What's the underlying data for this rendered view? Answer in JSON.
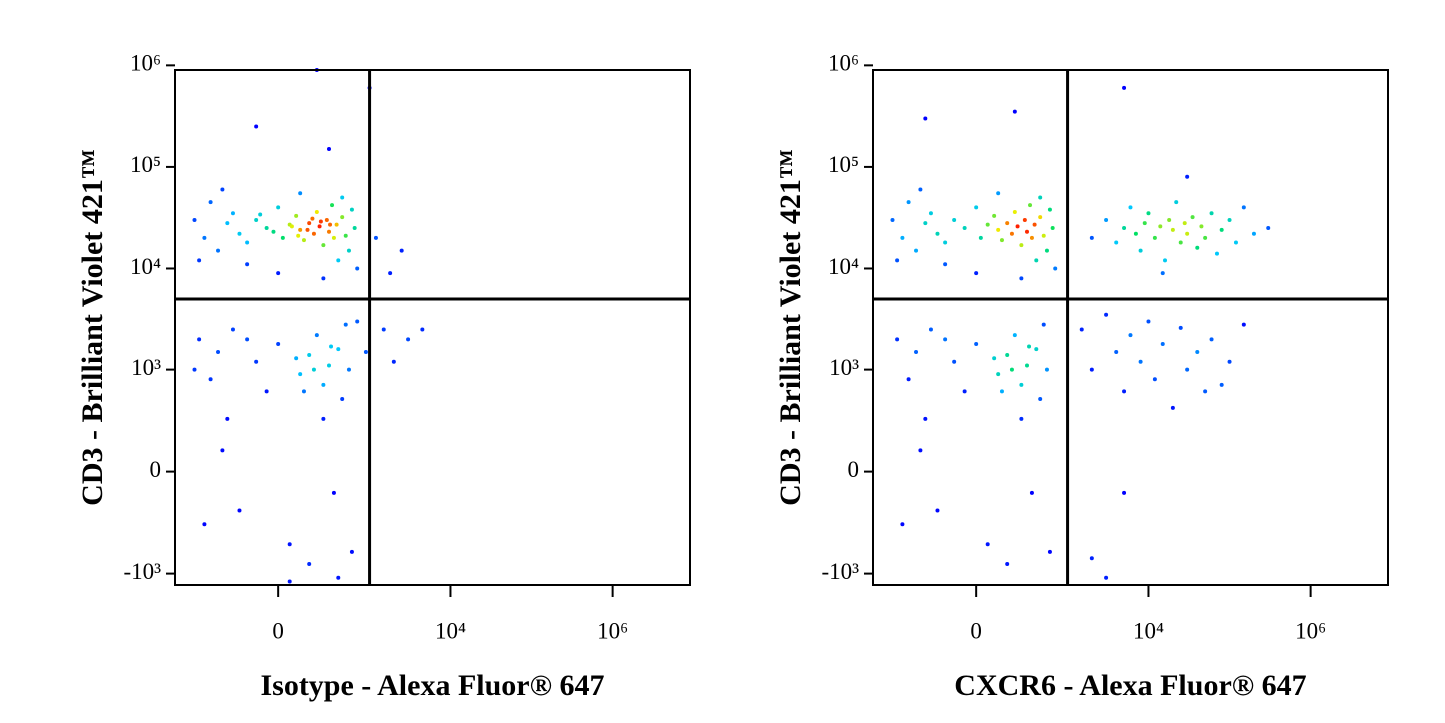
{
  "chart_data": [
    {
      "type": "scatter",
      "xscale": "biexponential",
      "yscale": "biexponential",
      "xlabel": "Isotype - Alexa Fluor® 647",
      "ylabel": "CD3 - Brilliant Violet 421™",
      "xlim": [
        -1400,
        9000000
      ],
      "ylim": [
        -1300,
        900000
      ],
      "xticks": [
        0,
        {
          "value": 10000,
          "label": "10⁴"
        },
        {
          "value": 1000000,
          "label": "10⁶"
        }
      ],
      "yticks": [
        {
          "value": -1000,
          "label": "-10³"
        },
        0,
        {
          "value": 1000,
          "label": "10³"
        },
        {
          "value": 10000,
          "label": "10⁴"
        },
        {
          "value": 100000,
          "label": "10⁵"
        },
        {
          "value": 1000000,
          "label": "10⁶"
        }
      ],
      "quadrant": {
        "x": 1000,
        "y": 5000
      },
      "colormap": [
        "#0000ff",
        "#00c8ff",
        "#00e060",
        "#f0f000",
        "#ff2000"
      ],
      "x": [
        -800,
        -600,
        -500,
        -400,
        -300,
        -250,
        -200,
        -150,
        -100,
        -50,
        0,
        20,
        50,
        80,
        100,
        120,
        150,
        180,
        200,
        220,
        250,
        280,
        300,
        330,
        350,
        380,
        400,
        450,
        500,
        550,
        600,
        650,
        700,
        -700,
        -350,
        0,
        100,
        250,
        -150,
        450,
        60,
        140,
        230,
        170,
        90,
        -20,
        310,
        -80,
        1200,
        2500,
        1800,
        200,
        1000,
        -100,
        300,
        -700,
        -500,
        -400,
        -300,
        -250,
        -200,
        -100,
        -50,
        0,
        50,
        100,
        150,
        200,
        250,
        300,
        350,
        400,
        450,
        500,
        550,
        600,
        -600,
        -350,
        150,
        250,
        80,
        180,
        320,
        120,
        -150,
        700,
        1500,
        3000,
        4500,
        2000,
        900,
        -800,
        400,
        50
      ],
      "y": [
        30000,
        20000,
        45000,
        15000,
        28000,
        35000,
        22000,
        18000,
        30000,
        25000,
        40000,
        20000,
        27000,
        33000,
        24000,
        19000,
        28000,
        22000,
        36000,
        26000,
        17000,
        30000,
        23000,
        42000,
        20000,
        27000,
        12000,
        32000,
        21000,
        15000,
        38000,
        25000,
        10000,
        12000,
        60000,
        9000,
        55000,
        8000,
        11000,
        50000,
        26000,
        24000,
        29000,
        31000,
        21000,
        23000,
        27000,
        34000,
        20000,
        15000,
        9000,
        900000,
        600000,
        250000,
        150000,
        2000,
        800,
        1500,
        300,
        2500,
        -200,
        1200,
        600,
        1800,
        -500,
        900,
        1400,
        2200,
        700,
        1100,
        -100,
        1600,
        500,
        2800,
        1000,
        -600,
        -300,
        100,
        -800,
        300,
        1300,
        1000,
        1700,
        600,
        2000,
        3000,
        2500,
        2000,
        2500,
        1200,
        1500,
        1000,
        -1100,
        -1200
      ]
    },
    {
      "type": "scatter",
      "xscale": "biexponential",
      "yscale": "biexponential",
      "xlabel": "CXCR6 - Alexa Fluor® 647",
      "ylabel": "CD3 - Brilliant Violet 421™",
      "xlim": [
        -1400,
        9000000
      ],
      "ylim": [
        -1300,
        900000
      ],
      "xticks": [
        0,
        {
          "value": 10000,
          "label": "10⁴"
        },
        {
          "value": 1000000,
          "label": "10⁶"
        }
      ],
      "yticks": [
        {
          "value": -1000,
          "label": "-10³"
        },
        0,
        {
          "value": 1000,
          "label": "10³"
        },
        {
          "value": 10000,
          "label": "10⁴"
        },
        {
          "value": 100000,
          "label": "10⁵"
        },
        {
          "value": 1000000,
          "label": "10⁶"
        }
      ],
      "quadrant": {
        "x": 1000,
        "y": 5000
      },
      "colormap": [
        "#0000ff",
        "#00c8ff",
        "#00e060",
        "#f0f000",
        "#ff2000"
      ],
      "x": [
        -800,
        -600,
        -500,
        -400,
        -300,
        -250,
        -200,
        -150,
        -100,
        -50,
        0,
        20,
        50,
        80,
        100,
        120,
        150,
        180,
        200,
        220,
        250,
        280,
        300,
        330,
        350,
        380,
        400,
        450,
        500,
        550,
        600,
        650,
        700,
        -700,
        -350,
        0,
        100,
        250,
        -150,
        450,
        2000,
        3000,
        4000,
        5000,
        6000,
        7000,
        8000,
        9000,
        10000,
        12000,
        14000,
        16000,
        18000,
        20000,
        22000,
        25000,
        28000,
        30000,
        35000,
        40000,
        45000,
        50000,
        60000,
        70000,
        80000,
        100000,
        120000,
        150000,
        200000,
        300000,
        15000,
        30000,
        5000,
        -300,
        200,
        -700,
        -500,
        -400,
        -300,
        -250,
        -200,
        -100,
        -50,
        0,
        50,
        100,
        150,
        200,
        250,
        300,
        350,
        400,
        450,
        500,
        550,
        600,
        -600,
        -350,
        150,
        250,
        80,
        180,
        320,
        120,
        -150,
        1500,
        2000,
        3000,
        4000,
        5000,
        6000,
        8000,
        10000,
        12000,
        15000,
        20000,
        25000,
        30000,
        40000,
        50000,
        60000,
        80000,
        100000,
        150000,
        5000,
        2000,
        3000
      ],
      "y": [
        30000,
        20000,
        45000,
        15000,
        28000,
        35000,
        22000,
        18000,
        30000,
        25000,
        40000,
        20000,
        27000,
        33000,
        24000,
        19000,
        28000,
        22000,
        36000,
        26000,
        17000,
        30000,
        23000,
        42000,
        20000,
        27000,
        12000,
        32000,
        21000,
        15000,
        38000,
        25000,
        10000,
        12000,
        60000,
        9000,
        55000,
        8000,
        11000,
        50000,
        20000,
        30000,
        18000,
        25000,
        40000,
        22000,
        15000,
        28000,
        35000,
        20000,
        26000,
        12000,
        30000,
        24000,
        45000,
        18000,
        28000,
        22000,
        32000,
        16000,
        26000,
        20000,
        35000,
        14000,
        24000,
        30000,
        18000,
        40000,
        22000,
        25000,
        9000,
        80000,
        600000,
        300000,
        350000,
        2000,
        800,
        1500,
        300,
        2500,
        -200,
        1200,
        600,
        1800,
        -500,
        900,
        1400,
        2200,
        700,
        1100,
        -100,
        1600,
        500,
        2800,
        1000,
        -600,
        -300,
        100,
        -800,
        300,
        1300,
        1000,
        1700,
        600,
        2000,
        2500,
        1000,
        3500,
        1500,
        600,
        2200,
        1200,
        3000,
        800,
        1800,
        400,
        2600,
        1000,
        1500,
        600,
        2000,
        700,
        1200,
        2800,
        -100,
        -700,
        -1100
      ]
    }
  ]
}
